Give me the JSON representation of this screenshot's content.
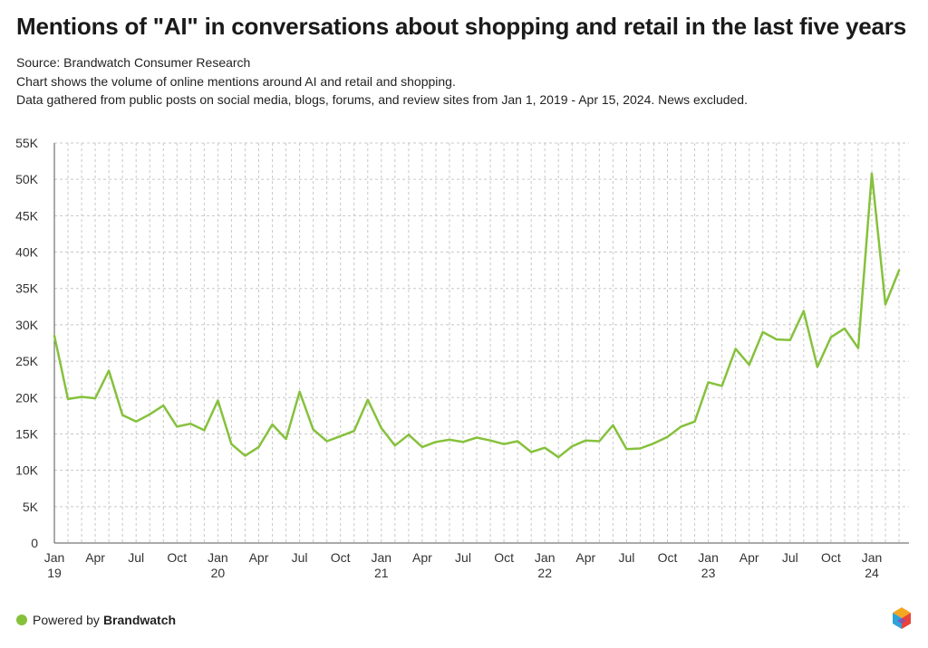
{
  "title": "Mentions of \"AI\" in conversations about shopping and retail in the last five years",
  "source": "Source: Brandwatch Consumer Research",
  "desc1": "Chart shows the volume of online mentions around AI and retail and shopping.",
  "desc2": "Data gathered from public posts on social media, blogs, forums, and review sites from Jan 1, 2019 - Apr 15, 2024. News excluded.",
  "footer": {
    "prefix": "Powered by",
    "brand": "Brandwatch"
  },
  "colors": {
    "line": "#86c13c",
    "grid": "#c8c8c8"
  },
  "chart_data": {
    "type": "line",
    "title": "Mentions of \"AI\" in conversations about shopping and retail in the last five years",
    "xlabel": "",
    "ylabel": "",
    "ylim": [
      0,
      55000
    ],
    "yticks": [
      0,
      5000,
      10000,
      15000,
      20000,
      25000,
      30000,
      35000,
      40000,
      45000,
      50000,
      55000
    ],
    "ytick_labels": [
      "0",
      "5K",
      "10K",
      "15K",
      "20K",
      "25K",
      "30K",
      "35K",
      "40K",
      "45K",
      "50K",
      "55K"
    ],
    "xticks": [
      {
        "month_index": 0,
        "label": "Jan",
        "year": "19"
      },
      {
        "month_index": 3,
        "label": "Apr",
        "year": ""
      },
      {
        "month_index": 6,
        "label": "Jul",
        "year": ""
      },
      {
        "month_index": 9,
        "label": "Oct",
        "year": ""
      },
      {
        "month_index": 12,
        "label": "Jan",
        "year": "20"
      },
      {
        "month_index": 15,
        "label": "Apr",
        "year": ""
      },
      {
        "month_index": 18,
        "label": "Jul",
        "year": ""
      },
      {
        "month_index": 21,
        "label": "Oct",
        "year": ""
      },
      {
        "month_index": 24,
        "label": "Jan",
        "year": "21"
      },
      {
        "month_index": 27,
        "label": "Apr",
        "year": ""
      },
      {
        "month_index": 30,
        "label": "Jul",
        "year": ""
      },
      {
        "month_index": 33,
        "label": "Oct",
        "year": ""
      },
      {
        "month_index": 36,
        "label": "Jan",
        "year": "22"
      },
      {
        "month_index": 39,
        "label": "Apr",
        "year": ""
      },
      {
        "month_index": 42,
        "label": "Jul",
        "year": ""
      },
      {
        "month_index": 45,
        "label": "Oct",
        "year": ""
      },
      {
        "month_index": 48,
        "label": "Jan",
        "year": "23"
      },
      {
        "month_index": 51,
        "label": "Apr",
        "year": ""
      },
      {
        "month_index": 54,
        "label": "Jul",
        "year": ""
      },
      {
        "month_index": 57,
        "label": "Oct",
        "year": ""
      },
      {
        "month_index": 60,
        "label": "Jan",
        "year": "24"
      }
    ],
    "x_range": [
      0,
      62.5
    ],
    "series": [
      {
        "name": "Mentions",
        "values": [
          28500,
          19800,
          20100,
          19900,
          23700,
          17600,
          16700,
          17700,
          18900,
          16000,
          16400,
          15500,
          19600,
          13600,
          12000,
          13200,
          16300,
          14300,
          20800,
          15600,
          14000,
          14700,
          15400,
          19700,
          15800,
          13400,
          14900,
          13200,
          13900,
          14200,
          13900,
          14500,
          14100,
          13600,
          14000,
          12500,
          13100,
          11800,
          13300,
          14100,
          14000,
          16200,
          12900,
          13000,
          13700,
          14600,
          16000,
          16700,
          22100,
          21600,
          26700,
          24500,
          29000,
          28000,
          27900,
          31900,
          24200,
          28300,
          29500,
          26800,
          50800,
          32800,
          37500
        ]
      }
    ]
  }
}
